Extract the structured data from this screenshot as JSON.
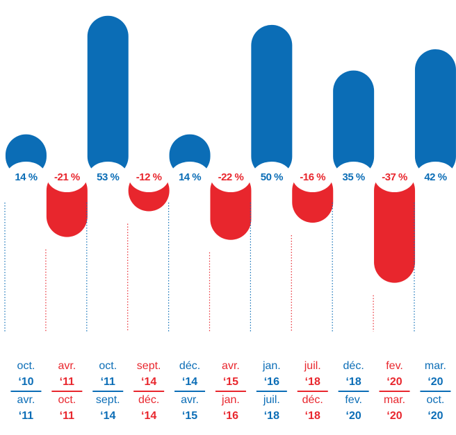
{
  "chart_data": {
    "type": "bar",
    "values": [
      14,
      -21,
      53,
      -12,
      14,
      -22,
      50,
      -16,
      35,
      -37,
      42
    ],
    "value_labels": [
      "14 %",
      "-21 %",
      "53 %",
      "-12 %",
      "14 %",
      "-22 %",
      "50 %",
      "-16 %",
      "35 %",
      "-37 %",
      "42 %"
    ],
    "periods": [
      {
        "from_month": "oct.",
        "from_year": "‘10",
        "to_month": "avr.",
        "to_year": "‘11"
      },
      {
        "from_month": "avr.",
        "from_year": "‘11",
        "to_month": "oct.",
        "to_year": "‘11"
      },
      {
        "from_month": "oct.",
        "from_year": "‘11",
        "to_month": "sept.",
        "to_year": "‘14"
      },
      {
        "from_month": "sept.",
        "from_year": "‘14",
        "to_month": "déc.",
        "to_year": "‘14"
      },
      {
        "from_month": "déc.",
        "from_year": "‘14",
        "to_month": "avr.",
        "to_year": "‘15"
      },
      {
        "from_month": "avr.",
        "from_year": "‘15",
        "to_month": "jan.",
        "to_year": "‘16"
      },
      {
        "from_month": "jan.",
        "from_year": "‘16",
        "to_month": "juil.",
        "to_year": "‘18"
      },
      {
        "from_month": "juil.",
        "from_year": "‘18",
        "to_month": "déc.",
        "to_year": "‘18"
      },
      {
        "from_month": "déc.",
        "from_year": "‘18",
        "to_month": "fev.",
        "to_year": "‘20"
      },
      {
        "from_month": "fev.",
        "from_year": "‘20",
        "to_month": "mar.",
        "to_year": "‘20"
      },
      {
        "from_month": "mar.",
        "from_year": "‘20",
        "to_month": "oct.",
        "to_year": "‘20"
      }
    ],
    "positive_color": "#0b6db6",
    "negative_color": "#e8262d",
    "ylim": [
      -40,
      55
    ]
  }
}
